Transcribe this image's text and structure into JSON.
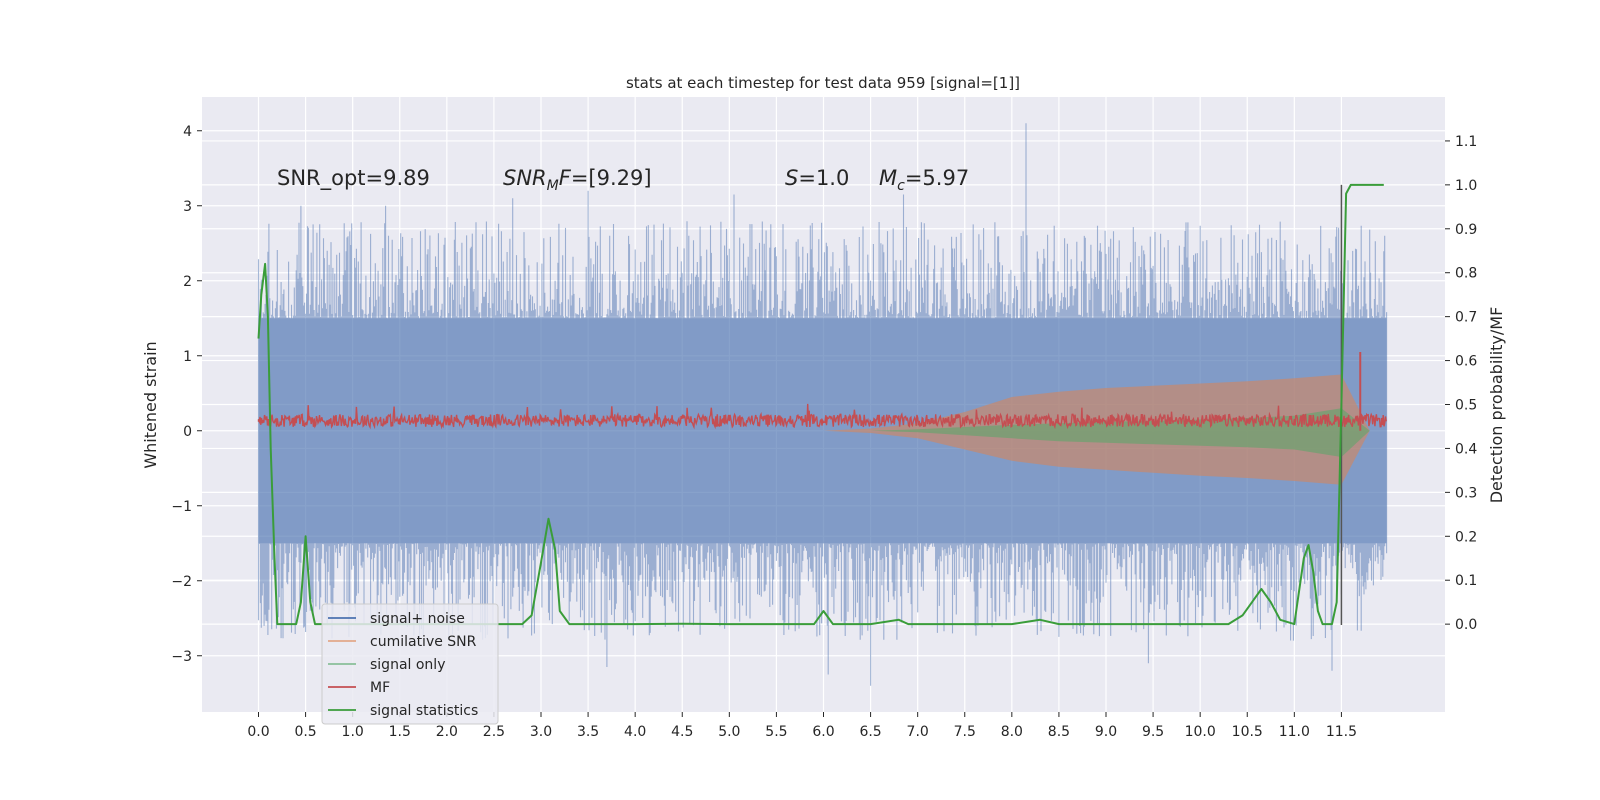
{
  "chart_data": {
    "type": "line",
    "title": "stats at each timestep for test data 959 [signal=[1]]",
    "xlabel": "",
    "ylabel": "Whitened strain",
    "y2label": "Detection probability/MF",
    "xlim": [
      -0.6,
      12.6
    ],
    "ylim": [
      -3.75,
      4.45
    ],
    "y2lim": [
      -0.2,
      1.2
    ],
    "xticks": [
      0.0,
      0.5,
      1.0,
      1.5,
      2.0,
      2.5,
      3.0,
      3.5,
      4.0,
      4.5,
      5.0,
      5.5,
      6.0,
      6.5,
      7.0,
      7.5,
      8.0,
      8.5,
      9.0,
      9.5,
      10.0,
      10.5,
      11.0,
      11.5
    ],
    "xtick_labels": [
      "0.0",
      "0.5",
      "1.0",
      "1.5",
      "2.0",
      "2.5",
      "3.0",
      "3.5",
      "4.0",
      "4.5",
      "5.0",
      "5.5",
      "6.0",
      "6.5",
      "7.0",
      "7.5",
      "8.0",
      "8.5",
      "9.0",
      "9.5",
      "10.0",
      "10.5",
      "11.0",
      "11.5"
    ],
    "yticks": [
      -3,
      -2,
      -1,
      0,
      1,
      2,
      3,
      4
    ],
    "ytick_labels": [
      "−3",
      "−2",
      "−1",
      "0",
      "1",
      "2",
      "3",
      "4"
    ],
    "y2ticks": [
      0.0,
      0.1,
      0.2,
      0.3,
      0.4,
      0.5,
      0.6,
      0.7,
      0.8,
      0.9,
      1.0,
      1.1
    ],
    "y2tick_labels": [
      "0.0",
      "0.1",
      "0.2",
      "0.3",
      "0.4",
      "0.5",
      "0.6",
      "0.7",
      "0.8",
      "0.9",
      "1.0",
      "1.1"
    ],
    "grid": true,
    "legend_position": "lower-left",
    "annotations": [
      {
        "text": "SNR_opt=9.89",
        "x": 0.2,
        "y": 3.3
      },
      {
        "text": "SNR_MF=[9.29]",
        "x": 2.6,
        "y": 3.3
      },
      {
        "text": "S=1.0",
        "x": 5.6,
        "y": 3.3
      },
      {
        "text": "M_c=5.97",
        "x": 6.6,
        "y": 3.3
      }
    ],
    "series": [
      {
        "name": "signal+ noise",
        "color": "#4c72b0",
        "axis": "left",
        "style": "noise-band",
        "x_range": [
          0.0,
          11.98
        ],
        "envelope": 1.5,
        "peaks": [
          [
            0.45,
            3.0
          ],
          [
            1.35,
            3.0
          ],
          [
            2.7,
            3.1
          ],
          [
            3.5,
            3.2
          ],
          [
            5.05,
            3.15
          ],
          [
            6.85,
            3.15
          ],
          [
            8.15,
            4.1
          ],
          [
            0.25,
            -2.1
          ],
          [
            3.7,
            -3.15
          ],
          [
            6.05,
            -3.25
          ],
          [
            6.5,
            -3.4
          ],
          [
            9.45,
            -3.1
          ],
          [
            11.4,
            -3.2
          ],
          [
            12.0,
            -2.9
          ]
        ]
      },
      {
        "name": "cumilative SNR",
        "color": "#dd8452",
        "axis": "left",
        "style": "envelope",
        "x": [
          6.0,
          6.5,
          7.0,
          7.5,
          8.0,
          8.5,
          9.0,
          9.5,
          10.0,
          10.5,
          11.0,
          11.5,
          11.8
        ],
        "upper": [
          0.0,
          0.03,
          0.1,
          0.25,
          0.45,
          0.52,
          0.57,
          0.6,
          0.63,
          0.66,
          0.7,
          0.75,
          0.0
        ],
        "lower": [
          0.0,
          -0.03,
          -0.1,
          -0.25,
          -0.4,
          -0.48,
          -0.52,
          -0.56,
          -0.6,
          -0.63,
          -0.67,
          -0.72,
          0.0
        ]
      },
      {
        "name": "signal only",
        "color": "#55a868",
        "axis": "left",
        "style": "envelope",
        "x": [
          0.0,
          6.5,
          7.0,
          7.5,
          8.0,
          8.5,
          9.0,
          9.5,
          10.0,
          10.5,
          11.0,
          11.5,
          11.8
        ],
        "upper": [
          0.0,
          0.0,
          0.02,
          0.05,
          0.08,
          0.1,
          0.12,
          0.13,
          0.15,
          0.17,
          0.2,
          0.3,
          0.0
        ],
        "lower": [
          0.0,
          0.0,
          -0.02,
          -0.06,
          -0.1,
          -0.14,
          -0.16,
          -0.18,
          -0.2,
          -0.22,
          -0.25,
          -0.35,
          0.0
        ]
      },
      {
        "name": "MF",
        "color": "#c44e52",
        "axis": "left",
        "style": "band",
        "x_range": [
          0.0,
          11.98
        ],
        "low": 0.05,
        "high": 0.22,
        "spike": [
          11.7,
          1.05
        ]
      },
      {
        "name": "signal statistics",
        "color": "#3a9d3a",
        "axis": "right",
        "style": "line",
        "x": [
          0.0,
          0.03,
          0.07,
          0.1,
          0.13,
          0.17,
          0.2,
          0.25,
          0.4,
          0.45,
          0.5,
          0.55,
          0.6,
          0.7,
          1.0,
          1.5,
          2.0,
          2.5,
          2.8,
          2.9,
          3.0,
          3.08,
          3.15,
          3.2,
          3.3,
          3.4,
          3.6,
          4.0,
          4.5,
          5.0,
          5.5,
          5.9,
          6.0,
          6.1,
          6.5,
          6.8,
          6.9,
          7.5,
          8.0,
          8.3,
          8.5,
          9.0,
          9.5,
          10.0,
          10.3,
          10.45,
          10.55,
          10.65,
          10.75,
          10.85,
          11.0,
          11.1,
          11.15,
          11.2,
          11.25,
          11.3,
          11.35,
          11.4,
          11.45,
          11.5,
          11.55,
          11.6,
          11.7,
          11.95
        ],
        "y": [
          0.65,
          0.75,
          0.82,
          0.7,
          0.4,
          0.15,
          0.0,
          0.0,
          0.0,
          0.05,
          0.2,
          0.05,
          0.0,
          0.0,
          0.0,
          0.0,
          0.0,
          0.0,
          0.0,
          0.02,
          0.14,
          0.24,
          0.17,
          0.03,
          0.0,
          0.0,
          0.0,
          0.0,
          0.001,
          0.0,
          0.0,
          0.0,
          0.03,
          0.0,
          0.0,
          0.01,
          0.0,
          0.0,
          0.0,
          0.01,
          0.0,
          0.0,
          0.0,
          0.0,
          0.0,
          0.02,
          0.05,
          0.08,
          0.05,
          0.01,
          0.0,
          0.15,
          0.18,
          0.12,
          0.03,
          0.0,
          0.0,
          0.0,
          0.05,
          0.5,
          0.98,
          1.0,
          1.0,
          1.0
        ]
      }
    ],
    "vertical_line": {
      "x": 11.5,
      "color": "#555555"
    }
  }
}
